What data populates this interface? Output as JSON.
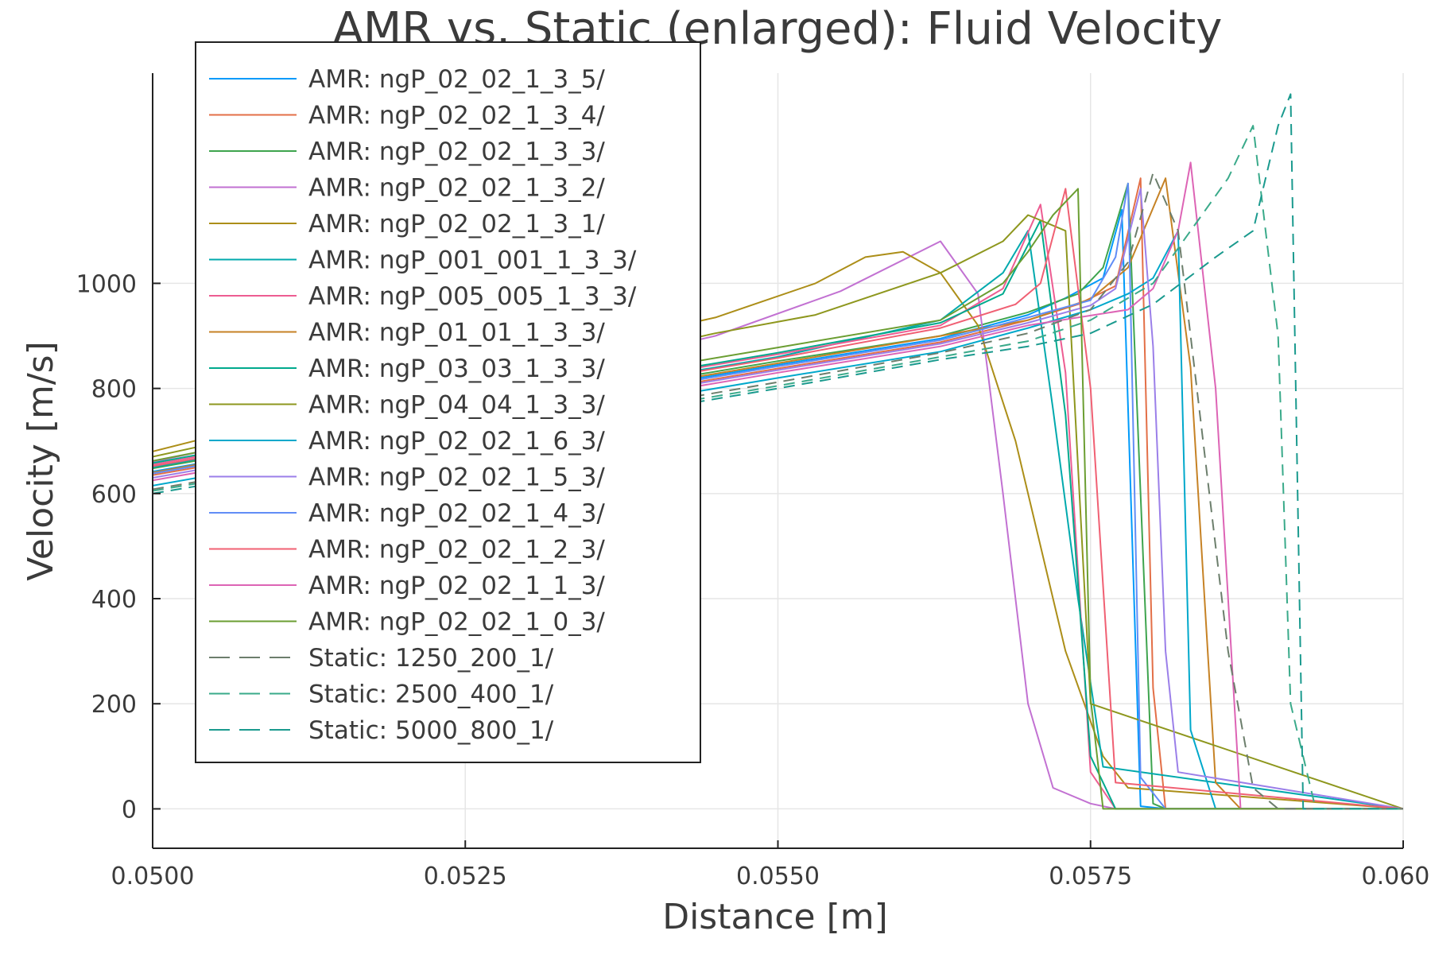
{
  "chart_data": {
    "type": "line",
    "title": "AMR vs. Static (enlarged): Fluid Velocity",
    "xlabel": "Distance [m]",
    "ylabel": "Velocity [m/s]",
    "xlim": [
      0.05,
      0.06
    ],
    "ylim": [
      -75,
      1400
    ],
    "xticks": [
      0.05,
      0.0525,
      0.055,
      0.0575,
      0.06
    ],
    "xtick_labels": [
      "0.0500",
      "0.0525",
      "0.0550",
      "0.0575",
      "0.0600"
    ],
    "yticks": [
      0,
      200,
      400,
      600,
      800,
      1000
    ],
    "ytick_labels": [
      "0",
      "200",
      "400",
      "600",
      "800",
      "1000"
    ],
    "grid": true,
    "legend_position": "top-left",
    "series": [
      {
        "name": "AMR: ngP_02_02_1_3_5/",
        "color": "#009AFA",
        "dash": false,
        "x": [
          0.05,
          0.0525,
          0.055,
          0.0563,
          0.057,
          0.0573,
          0.0576,
          0.05775,
          0.0579,
          0.0581,
          0.06
        ],
        "y": [
          642,
          745,
          845,
          895,
          940,
          972,
          1010,
          1140,
          5,
          0,
          0
        ]
      },
      {
        "name": "AMR: ngP_02_02_1_3_4/",
        "color": "#E36F47",
        "dash": false,
        "x": [
          0.05,
          0.0525,
          0.055,
          0.0563,
          0.057,
          0.0574,
          0.0577,
          0.0579,
          0.058,
          0.0581,
          0.06
        ],
        "y": [
          635,
          738,
          838,
          888,
          930,
          960,
          995,
          1200,
          230,
          0,
          0
        ]
      },
      {
        "name": "AMR: ngP_02_02_1_3_3/",
        "color": "#3EA44E",
        "dash": false,
        "x": [
          0.05,
          0.0525,
          0.055,
          0.0563,
          0.057,
          0.0574,
          0.0576,
          0.0578,
          0.058,
          0.0581,
          0.06
        ],
        "y": [
          648,
          752,
          852,
          900,
          945,
          980,
          1030,
          1190,
          10,
          0,
          0
        ]
      },
      {
        "name": "AMR: ngP_02_02_1_3_2/",
        "color": "#C271D2",
        "dash": false,
        "x": [
          0.05,
          0.0525,
          0.0545,
          0.0555,
          0.0563,
          0.0566,
          0.0568,
          0.057,
          0.0572,
          0.0575,
          0.0577,
          0.06
        ],
        "y": [
          660,
          790,
          900,
          985,
          1080,
          980,
          600,
          200,
          40,
          10,
          0,
          0
        ]
      },
      {
        "name": "AMR: ngP_02_02_1_3_1/",
        "color": "#AC8E18",
        "dash": false,
        "x": [
          0.05,
          0.0525,
          0.0545,
          0.0553,
          0.0557,
          0.056,
          0.0563,
          0.0566,
          0.0569,
          0.0573,
          0.0576,
          0.0578,
          0.06
        ],
        "y": [
          680,
          830,
          935,
          1000,
          1050,
          1060,
          1020,
          920,
          700,
          300,
          100,
          40,
          0
        ]
      },
      {
        "name": "AMR: ngP_001_001_1_3_3/",
        "color": "#00A9AD",
        "dash": false,
        "x": [
          0.05,
          0.0525,
          0.055,
          0.0563,
          0.0568,
          0.057,
          0.0572,
          0.0574,
          0.0576,
          0.06
        ],
        "y": [
          650,
          760,
          860,
          930,
          1020,
          1100,
          760,
          400,
          80,
          0
        ]
      },
      {
        "name": "AMR: ngP_005_005_1_3_3/",
        "color": "#ED5D92",
        "dash": false,
        "x": [
          0.05,
          0.0525,
          0.055,
          0.0563,
          0.0568,
          0.0571,
          0.0573,
          0.0575,
          0.0577,
          0.06
        ],
        "y": [
          655,
          765,
          865,
          920,
          990,
          1150,
          830,
          70,
          0,
          0
        ]
      },
      {
        "name": "AMR: ngP_01_01_1_3_3/",
        "color": "#C68225",
        "dash": false,
        "x": [
          0.05,
          0.0525,
          0.055,
          0.0563,
          0.057,
          0.0575,
          0.0578,
          0.0581,
          0.0583,
          0.0585,
          0.0587,
          0.06
        ],
        "y": [
          640,
          748,
          848,
          900,
          930,
          970,
          1030,
          1200,
          840,
          50,
          0,
          0
        ]
      },
      {
        "name": "AMR: ngP_03_03_1_3_3/",
        "color": "#00A98D",
        "dash": false,
        "x": [
          0.05,
          0.0525,
          0.055,
          0.0563,
          0.0568,
          0.0571,
          0.0573,
          0.0575,
          0.0577,
          0.06
        ],
        "y": [
          658,
          768,
          868,
          925,
          980,
          1120,
          750,
          100,
          0,
          0
        ]
      },
      {
        "name": "AMR: ngP_04_04_1_3_3/",
        "color": "#8E971E",
        "dash": false,
        "x": [
          0.05,
          0.0525,
          0.0545,
          0.0553,
          0.0563,
          0.0568,
          0.057,
          0.0573,
          0.0575,
          0.06
        ],
        "y": [
          670,
          800,
          905,
          940,
          1020,
          1080,
          1130,
          1100,
          200,
          0
        ]
      },
      {
        "name": "AMR: ngP_02_02_1_6_3/",
        "color": "#00A8CB",
        "dash": false,
        "x": [
          0.05,
          0.0525,
          0.055,
          0.0563,
          0.057,
          0.0575,
          0.0578,
          0.058,
          0.0582,
          0.0583,
          0.0585,
          0.06
        ],
        "y": [
          615,
          720,
          820,
          870,
          915,
          950,
          980,
          1010,
          1100,
          150,
          0,
          0
        ]
      },
      {
        "name": "AMR: ngP_02_02_1_5_3/",
        "color": "#9B7FE9",
        "dash": false,
        "x": [
          0.05,
          0.0525,
          0.055,
          0.0563,
          0.057,
          0.0575,
          0.0577,
          0.0579,
          0.058,
          0.0581,
          0.0582,
          0.06
        ],
        "y": [
          630,
          735,
          835,
          885,
          925,
          958,
          990,
          1180,
          880,
          300,
          70,
          0
        ]
      },
      {
        "name": "AMR: ngP_02_02_1_4_3/",
        "color": "#618DF6",
        "dash": false,
        "x": [
          0.05,
          0.0525,
          0.055,
          0.0563,
          0.057,
          0.0575,
          0.0577,
          0.0578,
          0.0579,
          0.0581,
          0.06
        ],
        "y": [
          638,
          742,
          842,
          892,
          935,
          968,
          1050,
          1190,
          60,
          0,
          0
        ]
      },
      {
        "name": "AMR: ngP_02_02_1_2_3/",
        "color": "#F06073",
        "dash": false,
        "x": [
          0.05,
          0.0525,
          0.055,
          0.0563,
          0.0569,
          0.0571,
          0.0573,
          0.0575,
          0.0577,
          0.06
        ],
        "y": [
          652,
          758,
          858,
          915,
          960,
          1000,
          1180,
          800,
          50,
          0
        ]
      },
      {
        "name": "AMR: ngP_02_02_1_1_3/",
        "color": "#DD64B5",
        "dash": false,
        "x": [
          0.05,
          0.0525,
          0.055,
          0.0563,
          0.057,
          0.0578,
          0.058,
          0.0582,
          0.0583,
          0.0585,
          0.0587,
          0.06
        ],
        "y": [
          625,
          730,
          830,
          880,
          920,
          950,
          990,
          1100,
          1230,
          800,
          0,
          0
        ]
      },
      {
        "name": "AMR: ngP_02_02_1_0_3/",
        "color": "#6B9E32",
        "dash": false,
        "x": [
          0.05,
          0.0525,
          0.055,
          0.0563,
          0.0568,
          0.057,
          0.0572,
          0.0574,
          0.0575,
          0.0576,
          0.06
        ],
        "y": [
          662,
          778,
          878,
          930,
          1000,
          1060,
          1130,
          1180,
          210,
          0,
          0
        ]
      },
      {
        "name": "Static: 1250_200_1/",
        "color": "#6C7E6C",
        "dash": true,
        "x": [
          0.05,
          0.0525,
          0.055,
          0.0563,
          0.057,
          0.0575,
          0.0578,
          0.058,
          0.0582,
          0.0584,
          0.0586,
          0.0588,
          0.059,
          0.06
        ],
        "y": [
          608,
          710,
          812,
          868,
          905,
          950,
          1040,
          1210,
          1100,
          700,
          300,
          40,
          0,
          0
        ]
      },
      {
        "name": "Static: 2500_400_1/",
        "color": "#3AAA8A",
        "dash": true,
        "x": [
          0.05,
          0.0525,
          0.055,
          0.0563,
          0.057,
          0.0575,
          0.058,
          0.0583,
          0.0586,
          0.0588,
          0.059,
          0.0591,
          0.0593,
          0.06
        ],
        "y": [
          605,
          705,
          805,
          860,
          890,
          930,
          1000,
          1100,
          1200,
          1300,
          900,
          200,
          0,
          0
        ]
      },
      {
        "name": "Static: 5000_800_1/",
        "color": "#1A9A8E",
        "dash": true,
        "x": [
          0.05,
          0.0525,
          0.055,
          0.0563,
          0.057,
          0.0575,
          0.058,
          0.0585,
          0.0588,
          0.059,
          0.0591,
          0.0592,
          0.06
        ],
        "y": [
          600,
          700,
          800,
          855,
          880,
          905,
          960,
          1050,
          1100,
          1300,
          1360,
          0,
          0
        ]
      }
    ]
  }
}
